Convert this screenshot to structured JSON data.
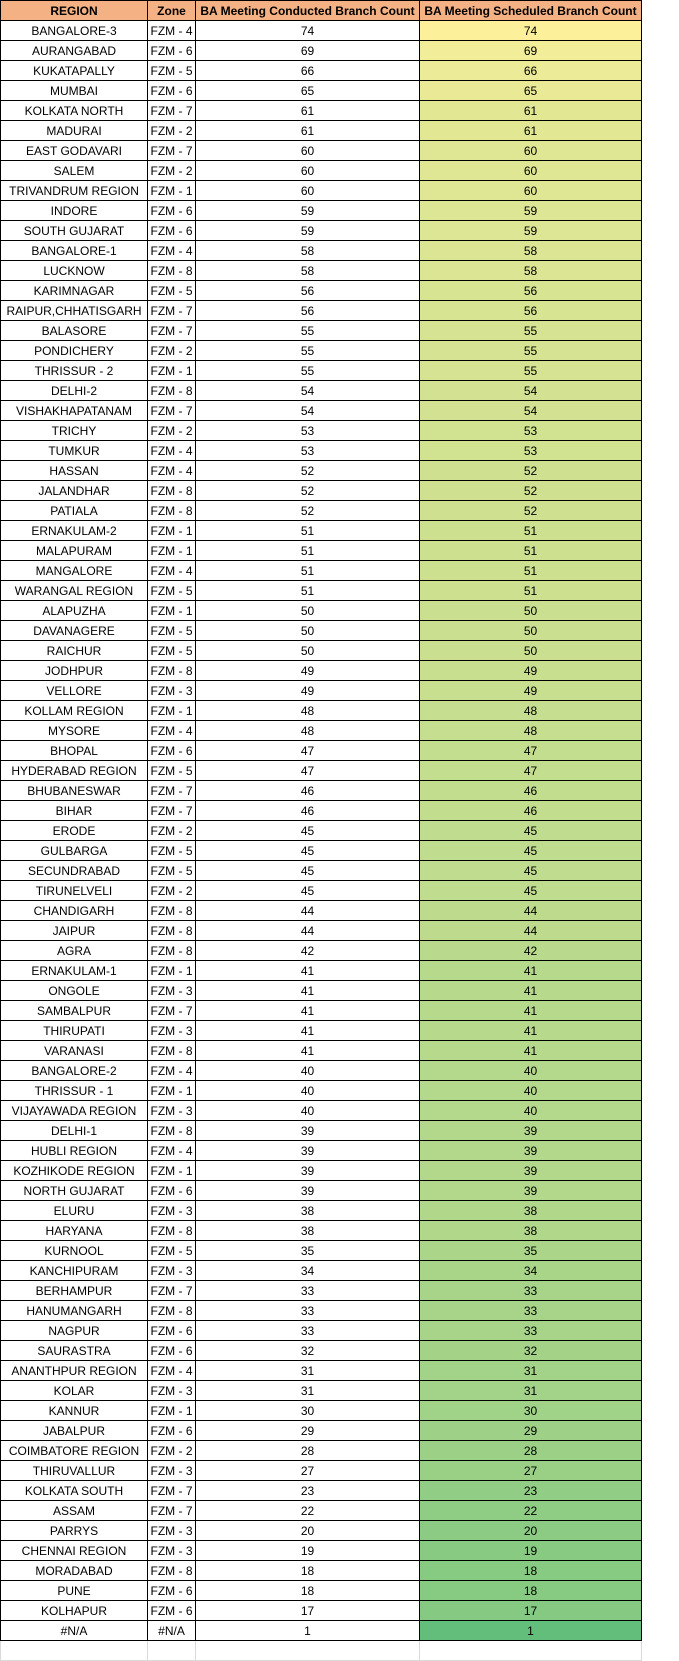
{
  "header": {
    "region": "REGION",
    "zone": "Zone",
    "conducted": "BA Meeting Conducted Branch Count",
    "scheduled": "BA Meeting Scheduled Branch Count"
  },
  "colors": {
    "header_fill": "#f4b183",
    "scale_high": "#fdf09a",
    "scale_low": "#63be7b"
  },
  "rows": [
    {
      "region": "BANGALORE-3",
      "zone": "FZM - 4",
      "conducted": "74",
      "scheduled": "74"
    },
    {
      "region": "AURANGABAD",
      "zone": "FZM - 6",
      "conducted": "69",
      "scheduled": "69"
    },
    {
      "region": "KUKATAPALLY",
      "zone": "FZM - 5",
      "conducted": "66",
      "scheduled": "66"
    },
    {
      "region": "MUMBAI",
      "zone": "FZM - 6",
      "conducted": "65",
      "scheduled": "65"
    },
    {
      "region": "KOLKATA NORTH",
      "zone": "FZM - 7",
      "conducted": "61",
      "scheduled": "61"
    },
    {
      "region": "MADURAI",
      "zone": "FZM - 2",
      "conducted": "61",
      "scheduled": "61"
    },
    {
      "region": "EAST GODAVARI",
      "zone": "FZM - 7",
      "conducted": "60",
      "scheduled": "60"
    },
    {
      "region": "SALEM",
      "zone": "FZM - 2",
      "conducted": "60",
      "scheduled": "60"
    },
    {
      "region": "TRIVANDRUM REGION",
      "zone": "FZM - 1",
      "conducted": "60",
      "scheduled": "60"
    },
    {
      "region": "INDORE",
      "zone": "FZM - 6",
      "conducted": "59",
      "scheduled": "59"
    },
    {
      "region": "SOUTH GUJARAT",
      "zone": "FZM - 6",
      "conducted": "59",
      "scheduled": "59"
    },
    {
      "region": "BANGALORE-1",
      "zone": "FZM - 4",
      "conducted": "58",
      "scheduled": "58"
    },
    {
      "region": "LUCKNOW",
      "zone": "FZM - 8",
      "conducted": "58",
      "scheduled": "58"
    },
    {
      "region": "KARIMNAGAR",
      "zone": "FZM - 5",
      "conducted": "56",
      "scheduled": "56"
    },
    {
      "region": "RAIPUR,CHHATISGARH",
      "zone": "FZM - 7",
      "conducted": "56",
      "scheduled": "56"
    },
    {
      "region": "BALASORE",
      "zone": "FZM - 7",
      "conducted": "55",
      "scheduled": "55"
    },
    {
      "region": "PONDICHERY",
      "zone": "FZM - 2",
      "conducted": "55",
      "scheduled": "55"
    },
    {
      "region": "THRISSUR - 2",
      "zone": "FZM - 1",
      "conducted": "55",
      "scheduled": "55"
    },
    {
      "region": "DELHI-2",
      "zone": "FZM - 8",
      "conducted": "54",
      "scheduled": "54"
    },
    {
      "region": "VISHAKHAPATANAM",
      "zone": "FZM - 7",
      "conducted": "54",
      "scheduled": "54"
    },
    {
      "region": "TRICHY",
      "zone": "FZM - 2",
      "conducted": "53",
      "scheduled": "53"
    },
    {
      "region": "TUMKUR",
      "zone": "FZM - 4",
      "conducted": "53",
      "scheduled": "53"
    },
    {
      "region": "HASSAN",
      "zone": "FZM - 4",
      "conducted": "52",
      "scheduled": "52"
    },
    {
      "region": "JALANDHAR",
      "zone": "FZM - 8",
      "conducted": "52",
      "scheduled": "52"
    },
    {
      "region": "PATIALA",
      "zone": "FZM - 8",
      "conducted": "52",
      "scheduled": "52"
    },
    {
      "region": "ERNAKULAM-2",
      "zone": "FZM - 1",
      "conducted": "51",
      "scheduled": "51"
    },
    {
      "region": "MALAPURAM",
      "zone": "FZM - 1",
      "conducted": "51",
      "scheduled": "51"
    },
    {
      "region": "MANGALORE",
      "zone": "FZM - 4",
      "conducted": "51",
      "scheduled": "51"
    },
    {
      "region": "WARANGAL REGION",
      "zone": "FZM - 5",
      "conducted": "51",
      "scheduled": "51"
    },
    {
      "region": "ALAPUZHA",
      "zone": "FZM - 1",
      "conducted": "50",
      "scheduled": "50"
    },
    {
      "region": "DAVANAGERE",
      "zone": "FZM - 5",
      "conducted": "50",
      "scheduled": "50"
    },
    {
      "region": "RAICHUR",
      "zone": "FZM - 5",
      "conducted": "50",
      "scheduled": "50"
    },
    {
      "region": "JODHPUR",
      "zone": "FZM - 8",
      "conducted": "49",
      "scheduled": "49"
    },
    {
      "region": "VELLORE",
      "zone": "FZM - 3",
      "conducted": "49",
      "scheduled": "49"
    },
    {
      "region": "KOLLAM REGION",
      "zone": "FZM - 1",
      "conducted": "48",
      "scheduled": "48"
    },
    {
      "region": "MYSORE",
      "zone": "FZM - 4",
      "conducted": "48",
      "scheduled": "48"
    },
    {
      "region": "BHOPAL",
      "zone": "FZM - 6",
      "conducted": "47",
      "scheduled": "47"
    },
    {
      "region": "HYDERABAD REGION",
      "zone": "FZM - 5",
      "conducted": "47",
      "scheduled": "47"
    },
    {
      "region": "BHUBANESWAR",
      "zone": "FZM - 7",
      "conducted": "46",
      "scheduled": "46"
    },
    {
      "region": "BIHAR",
      "zone": "FZM - 7",
      "conducted": "46",
      "scheduled": "46"
    },
    {
      "region": "ERODE",
      "zone": "FZM - 2",
      "conducted": "45",
      "scheduled": "45"
    },
    {
      "region": "GULBARGA",
      "zone": "FZM - 5",
      "conducted": "45",
      "scheduled": "45"
    },
    {
      "region": "SECUNDRABAD",
      "zone": "FZM - 5",
      "conducted": "45",
      "scheduled": "45"
    },
    {
      "region": "TIRUNELVELI",
      "zone": "FZM - 2",
      "conducted": "45",
      "scheduled": "45"
    },
    {
      "region": "CHANDIGARH",
      "zone": "FZM - 8",
      "conducted": "44",
      "scheduled": "44"
    },
    {
      "region": "JAIPUR",
      "zone": "FZM - 8",
      "conducted": "44",
      "scheduled": "44"
    },
    {
      "region": "AGRA",
      "zone": "FZM - 8",
      "conducted": "42",
      "scheduled": "42"
    },
    {
      "region": "ERNAKULAM-1",
      "zone": "FZM - 1",
      "conducted": "41",
      "scheduled": "41"
    },
    {
      "region": "ONGOLE",
      "zone": "FZM - 3",
      "conducted": "41",
      "scheduled": "41"
    },
    {
      "region": "SAMBALPUR",
      "zone": "FZM - 7",
      "conducted": "41",
      "scheduled": "41"
    },
    {
      "region": "THIRUPATI",
      "zone": "FZM - 3",
      "conducted": "41",
      "scheduled": "41"
    },
    {
      "region": "VARANASI",
      "zone": "FZM - 8",
      "conducted": "41",
      "scheduled": "41"
    },
    {
      "region": "BANGALORE-2",
      "zone": "FZM - 4",
      "conducted": "40",
      "scheduled": "40"
    },
    {
      "region": "THRISSUR - 1",
      "zone": "FZM - 1",
      "conducted": "40",
      "scheduled": "40"
    },
    {
      "region": "VIJAYAWADA REGION",
      "zone": "FZM - 3",
      "conducted": "40",
      "scheduled": "40"
    },
    {
      "region": "DELHI-1",
      "zone": "FZM - 8",
      "conducted": "39",
      "scheduled": "39"
    },
    {
      "region": "HUBLI REGION",
      "zone": "FZM - 4",
      "conducted": "39",
      "scheduled": "39"
    },
    {
      "region": "KOZHIKODE REGION",
      "zone": "FZM - 1",
      "conducted": "39",
      "scheduled": "39"
    },
    {
      "region": "NORTH GUJARAT",
      "zone": "FZM - 6",
      "conducted": "39",
      "scheduled": "39"
    },
    {
      "region": "ELURU",
      "zone": "FZM - 3",
      "conducted": "38",
      "scheduled": "38"
    },
    {
      "region": "HARYANA",
      "zone": "FZM - 8",
      "conducted": "38",
      "scheduled": "38"
    },
    {
      "region": "KURNOOL",
      "zone": "FZM - 5",
      "conducted": "35",
      "scheduled": "35"
    },
    {
      "region": "KANCHIPURAM",
      "zone": "FZM - 3",
      "conducted": "34",
      "scheduled": "34"
    },
    {
      "region": "BERHAMPUR",
      "zone": "FZM - 7",
      "conducted": "33",
      "scheduled": "33"
    },
    {
      "region": "HANUMANGARH",
      "zone": "FZM - 8",
      "conducted": "33",
      "scheduled": "33"
    },
    {
      "region": "NAGPUR",
      "zone": "FZM - 6",
      "conducted": "33",
      "scheduled": "33"
    },
    {
      "region": "SAURASTRA",
      "zone": "FZM - 6",
      "conducted": "32",
      "scheduled": "32"
    },
    {
      "region": "ANANTHPUR REGION",
      "zone": "FZM - 4",
      "conducted": "31",
      "scheduled": "31"
    },
    {
      "region": "KOLAR",
      "zone": "FZM - 3",
      "conducted": "31",
      "scheduled": "31"
    },
    {
      "region": "KANNUR",
      "zone": "FZM - 1",
      "conducted": "30",
      "scheduled": "30"
    },
    {
      "region": "JABALPUR",
      "zone": "FZM - 6",
      "conducted": "29",
      "scheduled": "29"
    },
    {
      "region": "COIMBATORE REGION",
      "zone": "FZM - 2",
      "conducted": "28",
      "scheduled": "28"
    },
    {
      "region": "THIRUVALLUR",
      "zone": "FZM - 3",
      "conducted": "27",
      "scheduled": "27"
    },
    {
      "region": "KOLKATA SOUTH",
      "zone": "FZM - 7",
      "conducted": "23",
      "scheduled": "23"
    },
    {
      "region": "ASSAM",
      "zone": "FZM - 7",
      "conducted": "22",
      "scheduled": "22"
    },
    {
      "region": "PARRYS",
      "zone": "FZM - 3",
      "conducted": "20",
      "scheduled": "20"
    },
    {
      "region": "CHENNAI REGION",
      "zone": "FZM - 3",
      "conducted": "19",
      "scheduled": "19"
    },
    {
      "region": "MORADABAD",
      "zone": "FZM - 8",
      "conducted": "18",
      "scheduled": "18"
    },
    {
      "region": "PUNE",
      "zone": "FZM - 6",
      "conducted": "18",
      "scheduled": "18"
    },
    {
      "region": "KOLHAPUR",
      "zone": "FZM - 6",
      "conducted": "17",
      "scheduled": "17"
    },
    {
      "region": "#N/A",
      "zone": "#N/A",
      "conducted": "1",
      "scheduled": "1"
    }
  ]
}
